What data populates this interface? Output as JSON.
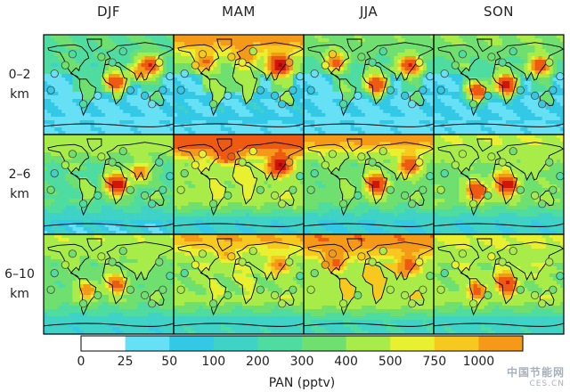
{
  "chart_data": {
    "type": "heatmap",
    "columns": [
      "DJF",
      "MAM",
      "JJA",
      "SON"
    ],
    "rows": [
      {
        "lines": [
          "0–2",
          "km"
        ]
      },
      {
        "lines": [
          "2–6",
          "km"
        ]
      },
      {
        "lines": [
          "6–10",
          "km"
        ]
      }
    ],
    "colorbar": {
      "title": "PAN (pptv)",
      "tick_labels": [
        "0",
        "25",
        "50",
        "100",
        "200",
        "300",
        "400",
        "500",
        "750",
        "1000"
      ],
      "bins": [
        0,
        25,
        50,
        100,
        150,
        200,
        300,
        350,
        400,
        500,
        750,
        1000
      ],
      "colors": [
        "#ffffff",
        "#66e0f5",
        "#33c8e6",
        "#3fd2c6",
        "#4fdca0",
        "#6fe070",
        "#a8ec4a",
        "#e8f030",
        "#f7c81e",
        "#f59a18",
        "#ee5a12",
        "#d0160a",
        "#a8000a"
      ]
    },
    "panels": [
      {
        "season": "DJF",
        "layer": "0-2 km",
        "base_pptv": 140,
        "ocean_low_pptv": 20,
        "polar_north_pptv": 150,
        "hotspots_pptv": {
          "tropical_africa": 650,
          "east_asia": 800,
          "south_asia": 450
        }
      },
      {
        "season": "MAM",
        "layer": "0-2 km",
        "base_pptv": 220,
        "ocean_low_pptv": 30,
        "polar_north_pptv": 450,
        "hotspots_pptv": {
          "east_asia": 1000,
          "north_america": 500,
          "europe": 500
        }
      },
      {
        "season": "JJA",
        "layer": "0-2 km",
        "base_pptv": 150,
        "ocean_low_pptv": 20,
        "polar_north_pptv": 180,
        "hotspots_pptv": {
          "east_asia": 800,
          "africa": 700,
          "north_america": 550
        }
      },
      {
        "season": "SON",
        "layer": "0-2 km",
        "base_pptv": 150,
        "ocean_low_pptv": 25,
        "polar_north_pptv": 200,
        "hotspots_pptv": {
          "south_america": 650,
          "africa": 800,
          "east_asia": 650
        }
      },
      {
        "season": "DJF",
        "layer": "2-6 km",
        "base_pptv": 170,
        "ocean_low_pptv": 40,
        "polar_north_pptv": 250,
        "hotspots_pptv": {
          "africa": 900,
          "south_asia": 500
        }
      },
      {
        "season": "MAM",
        "layer": "2-6 km",
        "base_pptv": 260,
        "ocean_low_pptv": 60,
        "polar_north_pptv": 650,
        "hotspots_pptv": {
          "east_asia": 1000,
          "north_atlantic": 650
        }
      },
      {
        "season": "JJA",
        "layer": "2-6 km",
        "base_pptv": 200,
        "ocean_low_pptv": 50,
        "polar_north_pptv": 450,
        "hotspots_pptv": {
          "africa": 800,
          "east_asia": 700
        }
      },
      {
        "season": "SON",
        "layer": "2-6 km",
        "base_pptv": 220,
        "ocean_low_pptv": 60,
        "polar_north_pptv": 300,
        "hotspots_pptv": {
          "africa": 900,
          "south_america": 700
        }
      },
      {
        "season": "DJF",
        "layer": "6-10 km",
        "base_pptv": 200,
        "ocean_low_pptv": 70,
        "polar_north_pptv": 280,
        "hotspots_pptv": {
          "africa": 550,
          "south_america": 450
        }
      },
      {
        "season": "MAM",
        "layer": "6-10 km",
        "base_pptv": 240,
        "ocean_low_pptv": 80,
        "polar_north_pptv": 400,
        "hotspots_pptv": {
          "east_asia": 500,
          "north_atlantic": 400
        }
      },
      {
        "season": "JJA",
        "layer": "6-10 km",
        "base_pptv": 300,
        "ocean_low_pptv": 90,
        "polar_north_pptv": 480,
        "hotspots_pptv": {
          "east_asia": 550,
          "north_america": 520
        }
      },
      {
        "season": "SON",
        "layer": "6-10 km",
        "base_pptv": 240,
        "ocean_low_pptv": 80,
        "polar_north_pptv": 320,
        "hotspots_pptv": {
          "africa": 750,
          "south_america": 550
        }
      }
    ],
    "observation_markers": "open circles filled with observed PAN on the same color scale"
  },
  "watermark": {
    "line1": "中国节能网",
    "line2": "CES.CN"
  }
}
